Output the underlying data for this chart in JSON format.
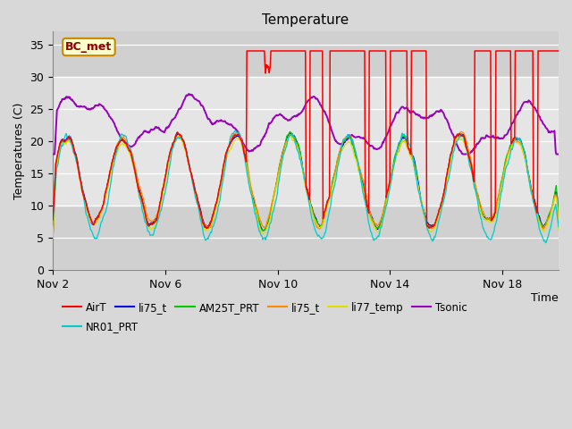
{
  "title": "Temperature",
  "ylabel": "Temperatures (C)",
  "xlabel": "Time",
  "annotation": "BC_met",
  "ylim": [
    0,
    37
  ],
  "yticks": [
    0,
    5,
    10,
    15,
    20,
    25,
    30,
    35
  ],
  "fig_bg": "#d8d8d8",
  "plot_bg": "#d0d0d0",
  "white_band_min": 10,
  "white_band_max": 30,
  "legend_labels": [
    "AirT",
    "li75_t",
    "AM25T_PRT",
    "li75_t",
    "li77_temp",
    "Tsonic",
    "NR01_PRT"
  ],
  "legend_colors": [
    "#ff0000",
    "#0000dd",
    "#00cc00",
    "#ff8800",
    "#dddd00",
    "#9900bb",
    "#00cccc"
  ],
  "x_tick_labels": [
    "Nov 2",
    "Nov 6",
    "Nov 10",
    "Nov 14",
    "Nov 18"
  ],
  "x_tick_positions": [
    2,
    6,
    10,
    14,
    18
  ],
  "xlim": [
    2,
    20
  ],
  "figsize": [
    6.4,
    4.8
  ],
  "dpi": 100
}
